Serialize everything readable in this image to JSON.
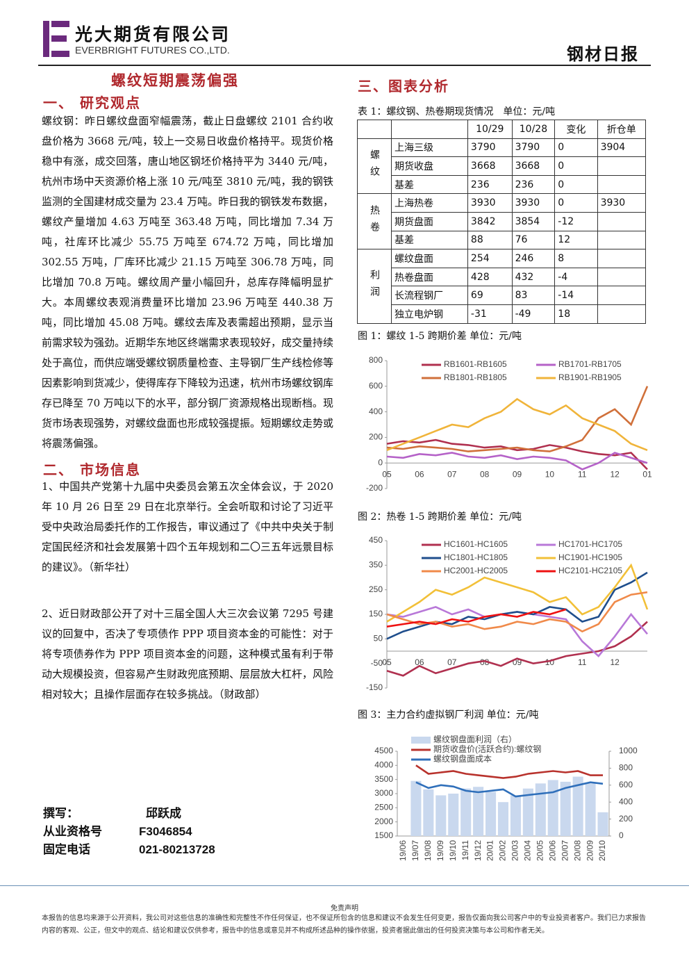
{
  "header": {
    "company": "光大期货有限公司",
    "company_en": "EVERBRIGHT FUTURES CO.,LTD.",
    "report": "钢材日报"
  },
  "title": "螺纹短期震荡偏强",
  "sections": [
    {
      "heading": "一、 研究观点",
      "paragraphs": [
        "螺纹钢：昨日螺纹盘面窄幅震荡，截止日盘螺纹 2101 合约收盘价格为 3668 元/吨，较上一交易日收盘价格持平。现货价格稳中有涨，成交回落，唐山地区钢坯价格持平为 3440 元/吨，杭州市场中天资源价格上涨 10 元/吨至 3810 元/吨，我的钢铁监测的全国建材成交量为 23.4 万吨。昨日我的钢铁发布数据，螺纹产量增加 4.63 万吨至 363.48 万吨，同比增加 7.34 万吨，社库环比减少 55.75 万吨至 674.72 万吨，同比增加 302.55 万吨，厂库环比减少 21.15 万吨至 306.78 万吨，同比增加 70.8 万吨。螺纹周产量小幅回升，总库存降幅明显扩大。本周螺纹表观消费量环比增加 23.96 万吨至 440.38 万吨，同比增加 45.08 万吨。螺纹去库及表需超出预期，显示当前需求较为强劲。近期华东地区终端需求表现较好，成交量持续处于高位，而供应端受螺纹钢质量检查、主导钢厂生产线检修等因素影响到货减少，使得库存下降较为迅速，杭州市场螺纹钢库存已降至 70 万吨以下的水平，部分钢厂资源规格出现断档。现货市场表现强势，对螺纹盘面也形成较强提振。短期螺纹走势或将震荡偏强。"
      ]
    },
    {
      "heading": "二、 市场信息",
      "paragraphs": [
        "1、中国共产党第十九届中央委员会第五次全体会议，于 2020 年 10 月 26 日至 29 日在北京举行。全会听取和讨论了习近平受中央政治局委托作的工作报告，审议通过了《中共中央关于制定国民经济和社会发展第十四个五年规划和二〇三五年远景目标的建议》。（新华社）",
        "2、近日财政部公开了对十三届全国人大三次会议第 7295 号建议的回复中，否决了专项债作 PPP 项目资本金的可能性：对于将专项债券作为 PPP 项目资本金的问题，这种模式虽有利于带动大规模投资，但容易产生财政兜底预期、层层放大杠杆，风险相对较大；且操作层面存在较多挑战。（财政部）"
      ]
    }
  ],
  "author": {
    "writer_label": "撰写：",
    "writer": "邱跃成",
    "license_label": "从业资格号",
    "license": "F3046854",
    "phone_label": "固定电话",
    "phone": "021-80213728"
  },
  "analysis_heading": "三、图表分析",
  "table": {
    "caption": "表 1：螺纹钢、热卷期现货情况　单位：元/吨",
    "columns": [
      "10/29",
      "10/28",
      "变化",
      "折仓单"
    ],
    "groups": [
      {
        "label": "螺纹",
        "rows": [
          {
            "item": "上海三级",
            "values": [
              3790,
              3790,
              0,
              3904
            ]
          },
          {
            "item": "期货收盘",
            "values": [
              3668,
              3668,
              0
            ]
          },
          {
            "item": "基差",
            "values": [
              236,
              236,
              0
            ]
          }
        ]
      },
      {
        "label": "热卷",
        "rows": [
          {
            "item": "上海热卷",
            "values": [
              3930,
              3930,
              0,
              3930
            ]
          },
          {
            "item": "期货盘面",
            "values": [
              3842,
              3854,
              -12
            ]
          },
          {
            "item": "基差",
            "values": [
              88,
              76,
              12
            ]
          }
        ]
      },
      {
        "label": "利润",
        "rows": [
          {
            "item": "螺纹盘面",
            "values": [
              254,
              246,
              8
            ]
          },
          {
            "item": "热卷盘面",
            "values": [
              428,
              432,
              -4
            ]
          },
          {
            "item": "长流程钢厂",
            "values": [
              69,
              83,
              -14
            ]
          },
          {
            "item": "独立电炉钢",
            "values": [
              -31,
              -49,
              18
            ]
          }
        ]
      }
    ]
  },
  "chart_data": [
    {
      "type": "line",
      "title": "图 1：螺纹 1-5 跨期价差 单位：元/吨",
      "categories": [
        "05",
        null,
        "06",
        null,
        "07",
        null,
        "08",
        null,
        "09",
        null,
        "10",
        null,
        "11",
        null,
        "12",
        null,
        "01"
      ],
      "series": [
        {
          "name": "RB1601-RB1605",
          "color": "#b0304f",
          "values": [
            150,
            170,
            160,
            180,
            150,
            140,
            120,
            130,
            100,
            110,
            140,
            120,
            90,
            70,
            60,
            80,
            -50
          ]
        },
        {
          "name": "RB1701-RB1705",
          "color": "#b562c8",
          "values": [
            50,
            40,
            70,
            60,
            80,
            50,
            40,
            60,
            30,
            50,
            40,
            20,
            -50,
            0,
            80,
            40,
            0
          ]
        },
        {
          "name": "RB1801-RB1805",
          "color": "#d0703a",
          "values": [
            120,
            110,
            130,
            120,
            110,
            90,
            100,
            110,
            120,
            100,
            90,
            130,
            180,
            350,
            420,
            300,
            600
          ]
        },
        {
          "name": "RB1901-RB1905",
          "color": "#f0b43a",
          "values": [
            100,
            150,
            200,
            250,
            300,
            280,
            350,
            400,
            500,
            420,
            380,
            450,
            350,
            300,
            250,
            150,
            100
          ]
        }
      ],
      "ylim": [
        -200,
        800
      ],
      "yticks": [
        -200,
        0,
        200,
        400,
        600,
        800
      ]
    },
    {
      "type": "line",
      "title": "图 2：热卷 1-5 跨期价差 单位：元/吨",
      "categories": [
        "05",
        null,
        "06",
        null,
        "07",
        null,
        "08",
        null,
        "09",
        null,
        "10",
        null,
        "11",
        null,
        "12",
        null,
        null
      ],
      "series": [
        {
          "name": "HC1601-HC1605",
          "color": "#b0304f",
          "values": [
            -80,
            -100,
            -60,
            -90,
            -70,
            -50,
            -40,
            -60,
            -30,
            -50,
            -40,
            -20,
            -10,
            0,
            20,
            60,
            120
          ]
        },
        {
          "name": "HC1701-HC1705",
          "color": "#b878d8",
          "values": [
            150,
            140,
            160,
            180,
            150,
            170,
            140,
            150,
            160,
            150,
            140,
            130,
            40,
            -20,
            60,
            150,
            70
          ]
        },
        {
          "name": "HC1801-HC1805",
          "color": "#1f4e8c",
          "values": [
            50,
            80,
            100,
            120,
            110,
            140,
            130,
            150,
            160,
            150,
            180,
            170,
            120,
            140,
            250,
            280,
            320
          ]
        },
        {
          "name": "HC1901-HC1905",
          "color": "#f2c038",
          "values": [
            120,
            160,
            200,
            250,
            230,
            260,
            300,
            280,
            260,
            240,
            200,
            220,
            150,
            180,
            260,
            350,
            170
          ]
        },
        {
          "name": "HC2001-HC2005",
          "color": "#f08a4a",
          "values": [
            150,
            130,
            110,
            120,
            100,
            110,
            90,
            100,
            120,
            110,
            130,
            120,
            80,
            110,
            200,
            230,
            240
          ]
        },
        {
          "name": "HC2101-HC2105",
          "color": "#ee1111",
          "values": [
            100,
            110,
            120,
            110,
            130,
            120,
            140,
            150,
            140,
            160,
            150,
            170,
            null,
            null,
            null,
            null,
            null
          ]
        }
      ],
      "ylim": [
        -150,
        450
      ],
      "yticks": [
        -150,
        -50,
        50,
        150,
        250,
        350,
        450
      ]
    },
    {
      "type": "combo",
      "title": "图 3：主力合约虚拟钢厂利润 单位：元/吨",
      "categories": [
        "19/06",
        "19/07",
        "19/08",
        "19/09",
        "19/10",
        "19/11",
        "19/12",
        "20/01",
        "20/02",
        "20/03",
        "20/04",
        "20/05",
        "20/06",
        "20/07",
        "20/08",
        "20/09",
        "20/10"
      ],
      "series": [
        {
          "name": "螺纹钢盘面利润（右）",
          "color": "#c9d8ee",
          "kind": "bar",
          "axis": "y2",
          "values": [
            null,
            650,
            550,
            480,
            500,
            560,
            580,
            520,
            400,
            480,
            560,
            620,
            660,
            640,
            700,
            620,
            280
          ]
        },
        {
          "name": "期货收盘价(活跃合约):螺纹钢",
          "color": "#b8322c",
          "kind": "line",
          "values": [
            null,
            4000,
            3700,
            3750,
            3800,
            3700,
            3650,
            3600,
            3550,
            3600,
            3700,
            3750,
            3800,
            3750,
            3800,
            3650,
            3650
          ]
        },
        {
          "name": "螺纹钢盘面成本",
          "color": "#2f6fba",
          "kind": "line",
          "values": [
            null,
            3400,
            3200,
            3300,
            3250,
            3100,
            3050,
            3100,
            3150,
            2900,
            2950,
            3000,
            3050,
            3200,
            3300,
            3400,
            3350
          ]
        }
      ],
      "ylim": [
        1500,
        4500
      ],
      "yticks": [
        1500,
        2000,
        2500,
        3000,
        3500,
        4000,
        4500
      ],
      "y2lim": [
        0,
        1000
      ],
      "y2ticks": [
        0,
        200,
        400,
        600,
        800,
        1000
      ]
    }
  ],
  "footer": {
    "heading": "免责声明",
    "text": "本报告的信息均来源于公开资料，我公司对这些信息的准确性和完整性不作任何保证，也不保证所包含的信息和建议不会发生任何变更，报告仅面向我公司客户中的专业投资者客户。我们已力求报告内容的客观、公正，但文中的观点、结论和建议仅供参考，报告中的信息或意见并不构成所述品种的操作依据，投资者据此做出的任何投资决策与本公司和作者无关。"
  }
}
